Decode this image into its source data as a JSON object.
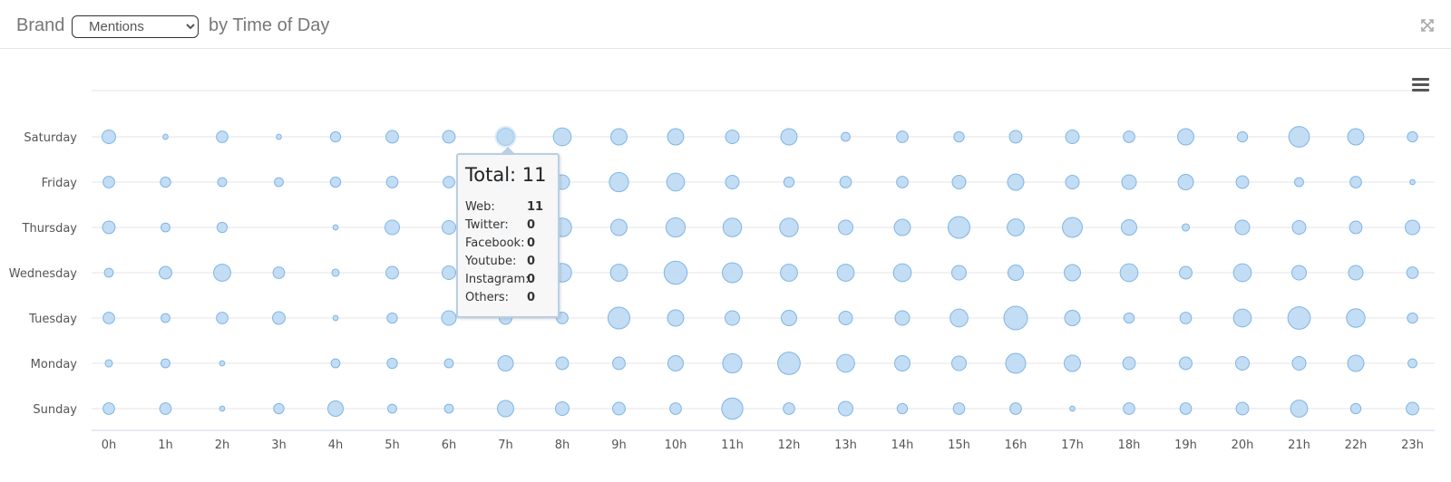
{
  "header": {
    "title_prefix": "Brand",
    "title_suffix": "by Time of Day",
    "metric_select": {
      "selected": "Mentions",
      "options": [
        "Mentions"
      ]
    }
  },
  "icons": {
    "expand": "expand-icon",
    "menu": "hamburger-menu-icon"
  },
  "colors": {
    "bubble_fill": "#bcd9f3",
    "bubble_stroke": "#7fb5e6",
    "grid": "#e6e6e6",
    "axis": "#ccd6eb"
  },
  "chart_data": {
    "type": "bubble",
    "title": "Brand Mentions by Time of Day",
    "xlabel": "",
    "ylabel": "",
    "grid": true,
    "legend": "none",
    "x_categories": [
      "0h",
      "1h",
      "2h",
      "3h",
      "4h",
      "5h",
      "6h",
      "7h",
      "8h",
      "9h",
      "10h",
      "11h",
      "12h",
      "13h",
      "14h",
      "15h",
      "16h",
      "17h",
      "18h",
      "19h",
      "20h",
      "21h",
      "22h",
      "23h"
    ],
    "y_categories": [
      "Saturday",
      "Friday",
      "Thursday",
      "Wednesday",
      "Tuesday",
      "Monday",
      "Sunday"
    ],
    "values": [
      [
        7,
        1,
        5,
        1,
        4,
        6,
        6,
        11,
        12,
        10,
        10,
        7,
        10,
        3,
        5,
        4,
        6,
        7,
        5,
        10,
        4,
        16,
        10,
        4
      ],
      [
        5,
        4,
        3,
        3,
        4,
        5,
        5,
        6,
        8,
        14,
        12,
        7,
        4,
        5,
        5,
        7,
        10,
        7,
        8,
        9,
        6,
        3,
        5,
        1
      ],
      [
        6,
        3,
        4,
        0,
        1,
        8,
        7,
        7,
        13,
        10,
        14,
        13,
        13,
        8,
        10,
        18,
        11,
        15,
        9,
        2,
        8,
        7,
        6,
        8
      ],
      [
        3,
        6,
        11,
        5,
        2,
        6,
        7,
        7,
        13,
        11,
        20,
        15,
        11,
        11,
        12,
        8,
        9,
        10,
        12,
        6,
        12,
        8,
        8,
        5
      ],
      [
        5,
        3,
        5,
        6,
        1,
        4,
        8,
        6,
        5,
        18,
        10,
        8,
        9,
        7,
        8,
        12,
        21,
        9,
        4,
        5,
        12,
        19,
        13,
        4
      ],
      [
        2,
        3,
        1,
        0,
        3,
        4,
        3,
        9,
        6,
        6,
        9,
        14,
        19,
        12,
        9,
        8,
        15,
        10,
        6,
        6,
        7,
        7,
        10,
        3
      ],
      [
        5,
        5,
        1,
        4,
        9,
        3,
        3,
        10,
        7,
        6,
        5,
        17,
        5,
        8,
        4,
        5,
        5,
        1,
        5,
        5,
        6,
        11,
        4,
        6
      ]
    ]
  },
  "tooltip": {
    "title": "Total: 11",
    "rows": [
      {
        "label": "Web:",
        "value": "11"
      },
      {
        "label": "Twitter:",
        "value": "0"
      },
      {
        "label": "Facebook:",
        "value": "0"
      },
      {
        "label": "Youtube:",
        "value": "0"
      },
      {
        "label": "Instagram:",
        "value": "0"
      },
      {
        "label": "Others:",
        "value": "0"
      }
    ]
  }
}
